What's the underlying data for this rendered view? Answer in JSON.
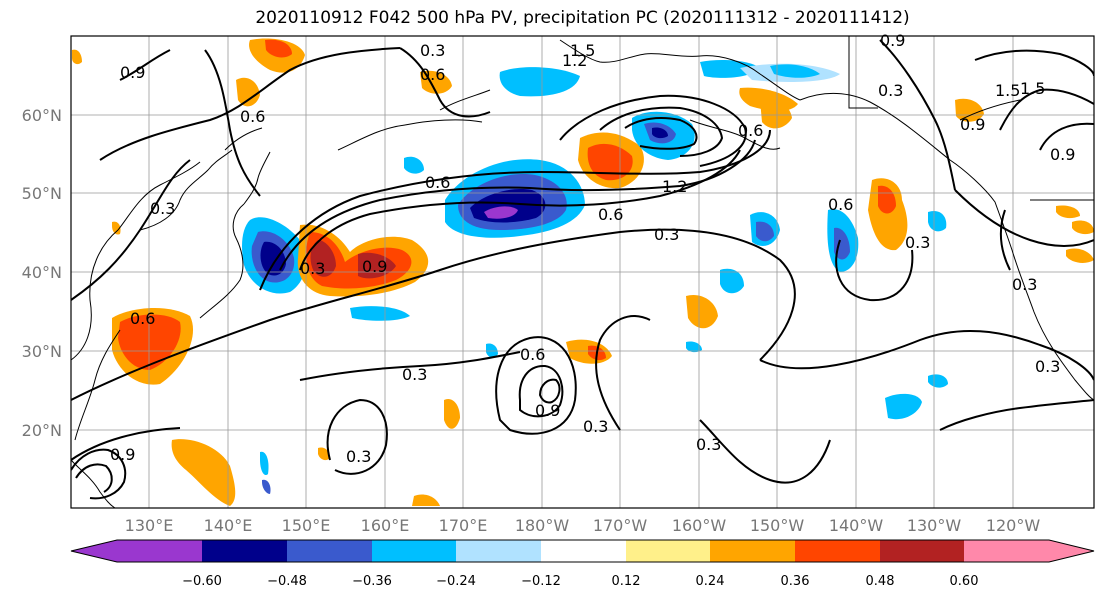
{
  "title": "2020110912 F042 500 hPa PV, precipitation PC (2020111312 - 2020111412)",
  "lat_ticks": [
    "60°N",
    "50°N",
    "40°N",
    "30°N",
    "20°N"
  ],
  "lon_ticks": [
    "130°E",
    "140°E",
    "150°E",
    "160°E",
    "170°E",
    "180°W",
    "170°W",
    "160°W",
    "150°W",
    "140°W",
    "130°W",
    "120°W"
  ],
  "colorbar": {
    "colors": [
      "#9a37cf",
      "#00008b",
      "#3a5acd",
      "#00bfff",
      "#b0e2ff",
      "#ffffff",
      "#fff08a",
      "#ffa500",
      "#ff4500",
      "#b22222",
      "#ff88aa"
    ],
    "labels": [
      "−0.60",
      "−0.48",
      "−0.36",
      "−0.24",
      "−0.12",
      "0.12",
      "0.24",
      "0.36",
      "0.48",
      "0.60"
    ]
  },
  "contour_labels": [
    "0.3",
    "0.9",
    "0.6",
    "1.5",
    "1.2",
    "0.3",
    "0.6",
    "0.3",
    "0.9",
    "1.5",
    "1.2",
    "0.6",
    "0.3",
    "0.9",
    "0.6",
    "0.3",
    "0.9",
    "0.3",
    "0.6",
    "0.3",
    "0.3",
    "0.6",
    "0.9",
    "0.6",
    "0.3",
    "0.9",
    "1.5",
    "0.3",
    "0.9",
    "0.3",
    "0.6",
    "0.3"
  ]
}
